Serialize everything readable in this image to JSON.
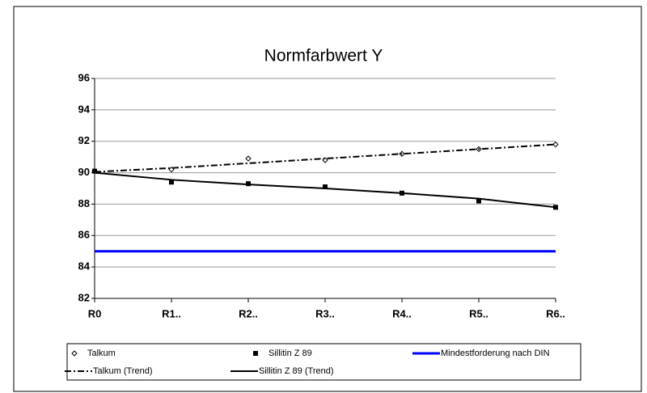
{
  "chart_data": {
    "type": "line",
    "title": "Normfarbwert Y",
    "categories": [
      "R0",
      "R1..",
      "R2..",
      "R3..",
      "R4..",
      "R5..",
      "R6.."
    ],
    "series": [
      {
        "name": "Talkum",
        "color": "#000000",
        "marker": "diamond",
        "line": "none",
        "values": [
          90.1,
          90.2,
          90.9,
          90.8,
          91.2,
          91.5,
          91.8
        ]
      },
      {
        "name": "Sillitin Z 89",
        "color": "#000000",
        "marker": "square",
        "line": "none",
        "values": [
          90.1,
          89.4,
          89.3,
          89.1,
          88.7,
          88.2,
          87.8
        ]
      },
      {
        "name": "Mindestforderung nach DIN",
        "color": "#0000ff",
        "marker": "none",
        "line": "solid",
        "values": [
          85,
          85,
          85,
          85,
          85,
          85,
          85
        ]
      },
      {
        "name": "Talkum (Trend)",
        "color": "#000000",
        "marker": "none",
        "line": "dashdot",
        "values": [
          90.05,
          90.3,
          90.6,
          90.9,
          91.2,
          91.5,
          91.8
        ]
      },
      {
        "name": "Sillitin Z 89 (Trend)",
        "color": "#000000",
        "marker": "none",
        "line": "solid",
        "values": [
          90.0,
          89.55,
          89.25,
          89.0,
          88.7,
          88.35,
          87.8
        ]
      }
    ],
    "ylim": [
      82,
      96
    ],
    "yticks": [
      82,
      84,
      86,
      88,
      90,
      92,
      94,
      96
    ],
    "grid": true,
    "legend": "bottom"
  }
}
